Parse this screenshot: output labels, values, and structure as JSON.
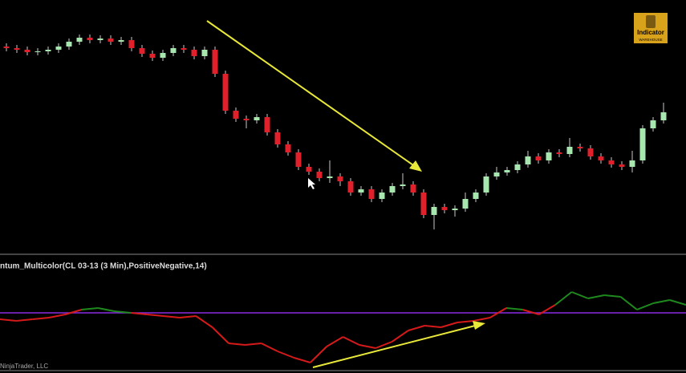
{
  "chart_data": [
    {
      "type": "candlestick",
      "ylim": [
        0,
        300
      ],
      "up_color": "#a8e6b0",
      "down_color": "#e0202a",
      "wick_color": "#c8c8c8",
      "open": [
        242,
        240,
        238,
        235,
        236,
        238,
        242,
        248,
        253,
        250,
        252,
        248,
        250,
        240,
        233,
        228,
        234,
        240,
        238,
        230,
        238,
        208,
        162,
        152,
        150,
        154,
        135,
        120,
        110,
        92,
        86,
        78,
        80,
        74,
        60,
        64,
        52,
        60,
        68,
        70,
        60,
        32,
        42,
        38,
        40,
        52,
        60,
        80,
        85,
        88,
        95,
        105,
        100,
        110,
        108,
        117,
        115,
        105,
        100,
        95,
        92,
        100,
        140,
        150
      ],
      "high": [
        246,
        244,
        242,
        240,
        242,
        246,
        252,
        257,
        257,
        256,
        256,
        254,
        254,
        244,
        237,
        238,
        244,
        244,
        242,
        242,
        242,
        212,
        166,
        156,
        158,
        158,
        139,
        124,
        114,
        96,
        90,
        100,
        84,
        78,
        68,
        68,
        64,
        72,
        84,
        74,
        64,
        46,
        46,
        44,
        60,
        64,
        84,
        92,
        92,
        99,
        112,
        109,
        114,
        114,
        128,
        121,
        119,
        109,
        104,
        99,
        112,
        144,
        154,
        172
      ],
      "low": [
        236,
        234,
        231,
        231,
        232,
        234,
        238,
        244,
        246,
        246,
        244,
        244,
        236,
        229,
        224,
        224,
        230,
        234,
        226,
        226,
        204,
        158,
        148,
        140,
        146,
        131,
        116,
        106,
        88,
        82,
        74,
        72,
        68,
        56,
        56,
        48,
        48,
        56,
        64,
        56,
        28,
        14,
        34,
        30,
        36,
        48,
        56,
        76,
        81,
        84,
        91,
        96,
        96,
        104,
        104,
        111,
        101,
        96,
        91,
        88,
        85,
        96,
        136,
        146
      ],
      "close": [
        240,
        238,
        235,
        236,
        238,
        242,
        248,
        253,
        250,
        252,
        248,
        250,
        240,
        233,
        228,
        234,
        240,
        238,
        230,
        238,
        208,
        162,
        152,
        150,
        154,
        135,
        120,
        110,
        92,
        86,
        78,
        80,
        74,
        60,
        64,
        52,
        60,
        68,
        70,
        60,
        32,
        42,
        38,
        40,
        52,
        60,
        80,
        85,
        88,
        95,
        105,
        100,
        110,
        108,
        117,
        115,
        105,
        100,
        95,
        92,
        100,
        140,
        150,
        160
      ]
    },
    {
      "type": "line",
      "title": "ntum_Multicolor(CL 03-13 (3 Min),PositiveNegative,14)",
      "ylim": [
        -72,
        72
      ],
      "positive_color": "#1e8a1e",
      "negative_color": "#d61a1a",
      "zero_line_color": "#8a2be2",
      "values": [
        -8,
        -10,
        -8,
        -6,
        -2,
        4,
        6,
        2,
        0,
        -2,
        -4,
        -6,
        -4,
        -18,
        -38,
        -40,
        -38,
        -48,
        -56,
        -62,
        -42,
        -30,
        -40,
        -44,
        -36,
        -22,
        -16,
        -18,
        -12,
        -10,
        -6,
        6,
        4,
        -2,
        10,
        26,
        18,
        22,
        20,
        4,
        12,
        16,
        10
      ]
    }
  ],
  "copyright": "NinjaTrader, LLC",
  "logo": {
    "line1": "Indicator",
    "line2": "WAREHOUSE"
  }
}
